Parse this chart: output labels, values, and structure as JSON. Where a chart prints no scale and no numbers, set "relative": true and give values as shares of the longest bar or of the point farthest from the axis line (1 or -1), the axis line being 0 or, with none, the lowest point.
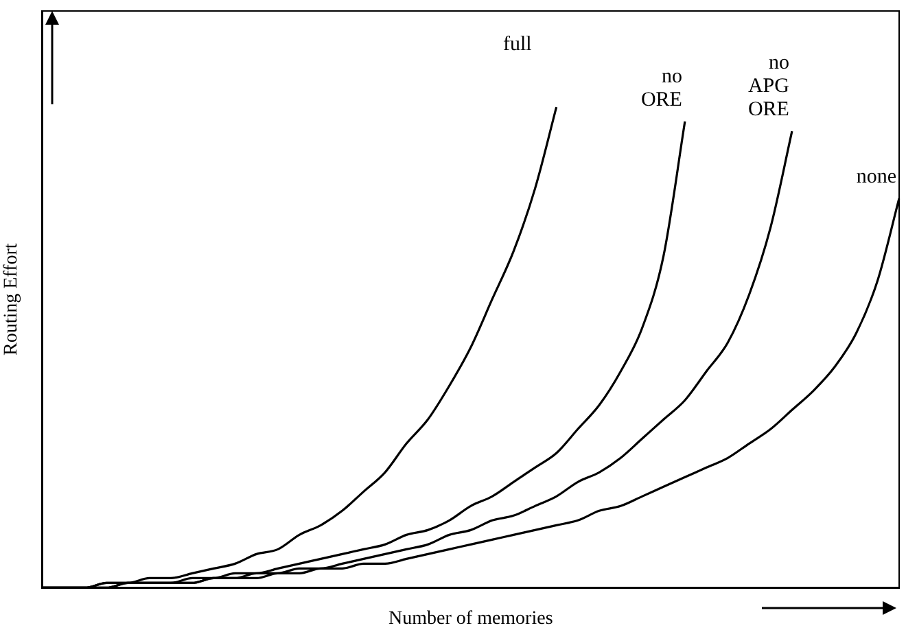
{
  "chart_data": {
    "type": "line",
    "relative": true,
    "xlabel": "Number of memories",
    "ylabel": "Routing Effort",
    "legend": false,
    "grid": false,
    "marker": "none",
    "line_style": "solid",
    "categories": [
      null,
      null,
      null,
      null,
      null,
      null,
      null,
      null,
      null,
      null,
      null,
      null,
      null,
      null,
      null,
      null,
      null,
      null,
      null,
      null,
      null,
      null,
      null,
      null,
      null,
      null,
      null,
      null,
      null,
      null,
      null,
      null,
      null,
      null,
      null,
      null,
      null,
      null,
      null,
      null,
      null
    ],
    "series": [
      {
        "name": "full",
        "color": "#000000",
        "values": [
          0,
          0,
          0,
          0.01,
          0.01,
          0.02,
          0.02,
          0.03,
          0.04,
          0.05,
          0.07,
          0.08,
          0.11,
          0.13,
          0.16,
          0.2,
          0.24,
          0.3,
          0.35,
          0.42,
          0.5,
          0.6,
          0.7,
          0.83,
          1,
          null,
          null,
          null,
          null,
          null,
          null,
          null,
          null,
          null,
          null,
          null,
          null,
          null,
          null,
          null,
          null
        ]
      },
      {
        "name": "no ORE",
        "color": "#000000",
        "values": [
          0,
          0,
          0,
          0.01,
          0.01,
          0.01,
          0.01,
          0.02,
          0.02,
          0.03,
          0.03,
          0.04,
          0.05,
          0.06,
          0.07,
          0.08,
          0.09,
          0.11,
          0.12,
          0.14,
          0.17,
          0.19,
          0.22,
          0.25,
          0.28,
          0.33,
          0.38,
          0.45,
          0.54,
          0.69,
          0.97,
          null,
          null,
          null,
          null,
          null,
          null,
          null,
          null,
          null,
          null
        ]
      },
      {
        "name": "no APG ORE",
        "color": "#000000",
        "values": [
          0,
          0,
          0,
          0,
          0.01,
          0.01,
          0.01,
          0.01,
          0.02,
          0.02,
          0.03,
          0.03,
          0.04,
          0.04,
          0.05,
          0.06,
          0.07,
          0.08,
          0.09,
          0.11,
          0.12,
          0.14,
          0.15,
          0.17,
          0.19,
          0.22,
          0.24,
          0.27,
          0.31,
          0.35,
          0.39,
          0.45,
          0.51,
          0.61,
          0.75,
          0.95,
          null,
          null,
          null,
          null,
          null
        ]
      },
      {
        "name": "none",
        "color": "#000000",
        "values": [
          0,
          0,
          0,
          0,
          0.01,
          0.01,
          0.01,
          0.01,
          0.02,
          0.02,
          0.02,
          0.03,
          0.03,
          0.04,
          0.04,
          0.05,
          0.05,
          0.06,
          0.07,
          0.08,
          0.09,
          0.1,
          0.11,
          0.12,
          0.13,
          0.14,
          0.16,
          0.17,
          0.19,
          0.21,
          0.23,
          0.25,
          0.27,
          0.3,
          0.33,
          0.37,
          0.41,
          0.46,
          0.53,
          0.64,
          0.81
        ]
      }
    ]
  }
}
